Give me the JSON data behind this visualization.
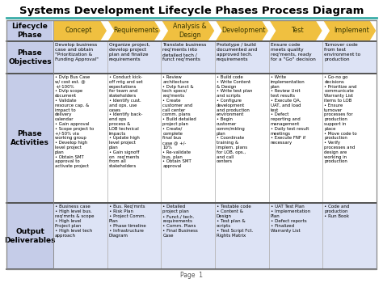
{
  "title": "Systems Development Lifecycle Phases Process Diagram",
  "title_fontsize": 9.5,
  "title_fontweight": "bold",
  "page_label": "Page  1",
  "bg_color": "#FFFFFF",
  "header_arrow_color": "#F0C040",
  "header_text_color": "#333300",
  "row_label_bg": "#C5CCE8",
  "row_label_text_color": "#000000",
  "cell_bg_blue": "#DDE3F5",
  "cell_bg_white": "#FFFFFF",
  "border_color": "#888888",
  "teal_line_color": "#3AADA8",
  "phases": [
    "Concept",
    "Requirements",
    "Analysis &\nDesign",
    "Development",
    "Test",
    "Implement"
  ],
  "row_labels": [
    "Lifecycle\nPhase",
    "Phase\nObjectives",
    "Phase\nActivities",
    "Output\nDeliverables"
  ],
  "phase_objectives": [
    "Develop business\ncase and obtain\n\"Prioritization &\nFunding Approval\"",
    "Organize project,\ndevelop project\nplan and finalize\nrequirements",
    "Translate business\nreq'ments into\ndetailed tech /\nfunct req'ments",
    "Prototype / build\ndocumented and\napproved tech.\nrequirements",
    "Ensure code\nmeets quality\nreq'ments, ready\nfor a \"Go\" decision",
    "Turnover code\nfrom test\nenvironment to\nproduction"
  ],
  "phase_activities": [
    "• Dvlp Bus Case\nw/ cost est. @\n+/-100%\n• Dvlp scope\ndocument\n• Validate\nresource cap. &\nimpact to\ndelivery\ncalendar\n• Gain approval\n• Scope project to\n+/-50% via\nworking group\n• Develop high\nlevel project\nplan\n• Obtain SMT\napproval to\nactivate project",
    "• Conduct kick-\noff mtg and set\nexpectations\nfor team and\nstakeholders\n• Identify cust.\nand ops. use\ncases\n• Identify back-\nend ops\nprocess &\nLOB technical\nimpacts\n• Update high\nlevel project\nplan\n• Gain signoff\non  req'ments\nfrom all\nstakeholders",
    "• Review\narchitecture\n• Dvlp funct &\ntech specs/\nreq'ments\n• Create\ncustomer and\ncall center\ncomm. plans\n• Build detailed\nproject plan\n• Create/\ncomplete\nfinal bus\ncase @ +/-\n10%\n• Re-validate\nbus. plan\n• Obtain SMT\napproval",
    "• Build code\n• Write Content\n& Design\n• Write test plan\nand scripts\n• Configure\ndevelopment\nand production\nenvironment\n• Begin\ncustomer\ncomm/mktng\nplan\n• Coordinate\ntraining &\nimplem. plans\nfor LOB, ops.,\nand call\ncenters",
    "• Write\nimplementation\nplan\n• Review Unit\ntest results\n• Execute QA,\nUAT, and load\ntest\n• Defect\nreporting and\nmanagement\n• Daily test result\nmeetings\n• Execute FNF if\nnecessary",
    "• Go-no go\ndecisions\n• Prioritize and\ncommunicate\nWarranty List\nitems to LOB\n• Ensure\nturnover\nprocesses for\nproduction\nsupport in\nplace\n• Move code to\nproduction\n• Verify\nprocesses and\ndesign are\nworking in\nproduction"
  ],
  "output_deliverables": [
    "• Business case\n• High level bus.\nreq'mnts & scope\n• High level\nProject plan\n• High level tech\napproach",
    "• Bus. Req'mnts\n• Risk Plan\n• Project Comm.\nPlan\n• Phase timeline\n• Infrastructure\nDiagram",
    "• Detailed\nproject plan\n• Funct./ tech.\nrequirements\n• Comm. Plans\n• Final Business\nCase",
    "• Testable code\n• Content &\nDesign\n• Test plan &\nscripts\n• Test Script Fct.\nRights Matrix",
    "• UAT Test Plan\n• Implementation\nPlan\n• Defect reports\n• Finalized\nWarranty List",
    "• Code and\nproduction\n• Run Book"
  ]
}
